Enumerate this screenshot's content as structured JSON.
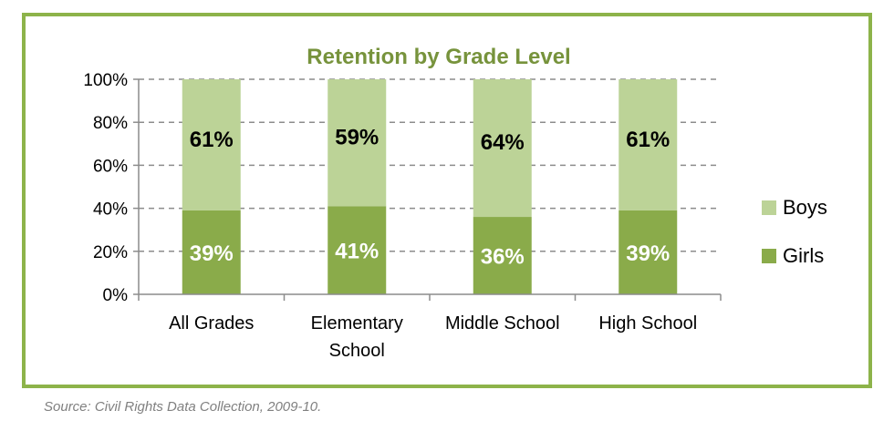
{
  "chart_data": {
    "type": "bar",
    "stacked": true,
    "title": "Retention by Grade Level",
    "categories": [
      [
        "All Grades"
      ],
      [
        "Elementary",
        "School"
      ],
      [
        "Middle School"
      ],
      [
        "High School"
      ]
    ],
    "series": [
      {
        "name": "Girls",
        "values": [
          39,
          41,
          36,
          39
        ],
        "labels": [
          "39%",
          "41%",
          "36%",
          "39%"
        ],
        "color": "#8aab4a"
      },
      {
        "name": "Boys",
        "values": [
          61,
          59,
          64,
          61
        ],
        "labels": [
          "61%",
          "59%",
          "64%",
          "61%"
        ],
        "color": "#bcd397"
      }
    ],
    "ylim": [
      0,
      100
    ],
    "yticks": [
      0,
      20,
      40,
      60,
      80,
      100
    ],
    "ytick_labels": [
      "0%",
      "20%",
      "40%",
      "60%",
      "80%",
      "100%"
    ],
    "grid": "dashed horizontal",
    "legend": "right",
    "legend_order": [
      "Boys",
      "Girls"
    ],
    "frame_color": "#8db34a",
    "title_color": "#77933c"
  },
  "footer": {
    "source": "Source: Civil Rights Data Collection, 2009-10."
  }
}
